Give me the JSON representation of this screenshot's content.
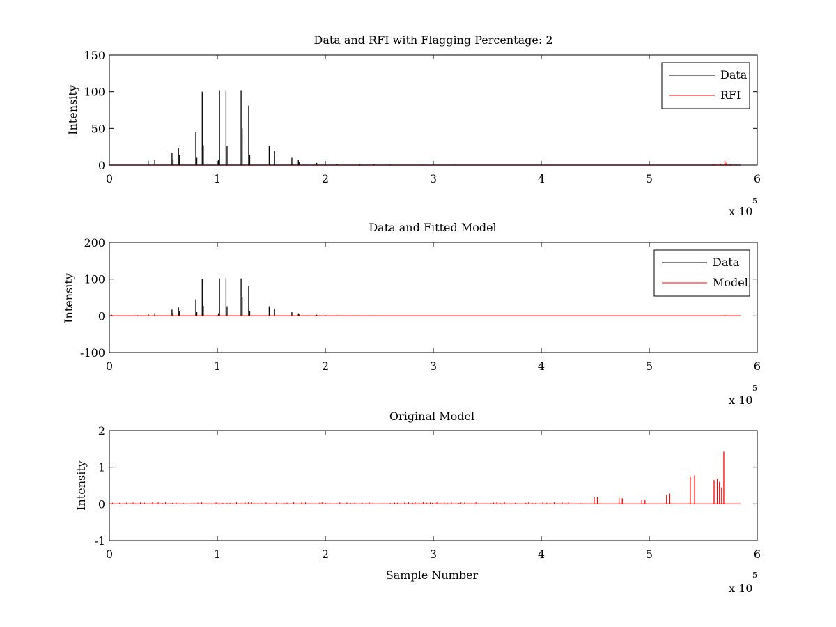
{
  "figure": {
    "background": "#ffffff",
    "axis_color": "#000000"
  },
  "chart_data": [
    {
      "type": "line",
      "title": "Data and RFI with Flagging Percentage: 2",
      "xlabel": "",
      "ylabel": "Intensity",
      "xlim": [
        0,
        600000
      ],
      "ylim": [
        0,
        150
      ],
      "xticks": [
        0,
        100000,
        200000,
        300000,
        400000,
        500000,
        600000
      ],
      "xtick_labels": [
        "0",
        "1",
        "2",
        "3",
        "4",
        "5",
        "6"
      ],
      "yticks": [
        0,
        50,
        100,
        150
      ],
      "ytick_labels": [
        "0",
        "50",
        "100",
        "150"
      ],
      "x_multiplier": {
        "base": "x 10",
        "exponent": "5"
      },
      "legend": {
        "placement": "top-right",
        "entries": [
          "Data",
          "RFI"
        ]
      },
      "grid": false,
      "baseline": 0,
      "x_end": 585000,
      "series": [
        {
          "name": "Data",
          "color": "#000000",
          "spikes": [
            [
              36000,
              6
            ],
            [
              42000,
              7
            ],
            [
              58000,
              17
            ],
            [
              59000,
              8
            ],
            [
              64000,
              23
            ],
            [
              65000,
              14
            ],
            [
              80000,
              45
            ],
            [
              81000,
              10
            ],
            [
              86000,
              100
            ],
            [
              87000,
              27
            ],
            [
              101000,
              7
            ],
            [
              102000,
              102
            ],
            [
              108000,
              102
            ],
            [
              109000,
              26
            ],
            [
              122000,
              102
            ],
            [
              123000,
              50
            ],
            [
              129000,
              81
            ],
            [
              130000,
              14
            ],
            [
              148000,
              26
            ],
            [
              153000,
              19
            ],
            [
              169000,
              10
            ],
            [
              175000,
              7
            ],
            [
              176000,
              4
            ],
            [
              183000,
              2
            ],
            [
              192000,
              3
            ],
            [
              200000,
              2
            ],
            [
              211000,
              1.5
            ],
            [
              232000,
              1
            ],
            [
              245000,
              1
            ],
            [
              260000,
              0.8
            ],
            [
              290000,
              0.6
            ],
            [
              320000,
              0.6
            ],
            [
              360000,
              0.5
            ]
          ]
        },
        {
          "name": "RFI",
          "color": "#ff0000",
          "spikes": [
            [
              560000,
              1
            ],
            [
              566000,
              2
            ],
            [
              570000,
              6
            ],
            [
              571000,
              3
            ],
            [
              575000,
              1
            ]
          ]
        }
      ]
    },
    {
      "type": "line",
      "title": "Data and Fitted Model",
      "xlabel": "",
      "ylabel": "Intensity",
      "xlim": [
        0,
        600000
      ],
      "ylim": [
        -100,
        200
      ],
      "xticks": [
        0,
        100000,
        200000,
        300000,
        400000,
        500000,
        600000
      ],
      "xtick_labels": [
        "0",
        "1",
        "2",
        "3",
        "4",
        "5",
        "6"
      ],
      "yticks": [
        -100,
        0,
        100,
        200
      ],
      "ytick_labels": [
        "-100",
        "0",
        "100",
        "200"
      ],
      "x_multiplier": {
        "base": "x 10",
        "exponent": "5"
      },
      "legend": {
        "placement": "top-right",
        "entries": [
          "Data",
          "Model"
        ]
      },
      "grid": false,
      "baseline": 0,
      "x_end": 585000,
      "series": [
        {
          "name": "Data",
          "color": "#000000",
          "spikes": [
            [
              2000,
              3
            ],
            [
              26000,
              2
            ],
            [
              36000,
              6
            ],
            [
              42000,
              7
            ],
            [
              58000,
              17
            ],
            [
              59000,
              8
            ],
            [
              64000,
              23
            ],
            [
              65000,
              14
            ],
            [
              80000,
              45
            ],
            [
              81000,
              10
            ],
            [
              86000,
              100
            ],
            [
              87000,
              27
            ],
            [
              101000,
              7
            ],
            [
              102000,
              102
            ],
            [
              108000,
              102
            ],
            [
              109000,
              26
            ],
            [
              122000,
              102
            ],
            [
              123000,
              50
            ],
            [
              129000,
              81
            ],
            [
              130000,
              14
            ],
            [
              148000,
              26
            ],
            [
              153000,
              19
            ],
            [
              169000,
              10
            ],
            [
              175000,
              7
            ],
            [
              176000,
              4
            ],
            [
              183000,
              2
            ],
            [
              192000,
              3
            ],
            [
              200000,
              2
            ],
            [
              211000,
              1.5
            ],
            [
              232000,
              1
            ],
            [
              245000,
              1
            ],
            [
              260000,
              0.8
            ],
            [
              280000,
              0.8
            ],
            [
              300000,
              0.6
            ],
            [
              320000,
              0.6
            ],
            [
              570000,
              2
            ]
          ]
        },
        {
          "name": "Model",
          "color": "#ff0000",
          "spikes": []
        }
      ]
    },
    {
      "type": "line",
      "title": "Original Model",
      "xlabel": "Sample Number",
      "ylabel": "Intensity",
      "xlim": [
        0,
        600000
      ],
      "ylim": [
        -1,
        2
      ],
      "xticks": [
        0,
        100000,
        200000,
        300000,
        400000,
        500000,
        600000
      ],
      "xtick_labels": [
        "0",
        "1",
        "2",
        "3",
        "4",
        "5",
        "6"
      ],
      "yticks": [
        -1,
        0,
        1,
        2
      ],
      "ytick_labels": [
        "-1",
        "0",
        "1",
        "2"
      ],
      "x_multiplier": {
        "base": "x 10",
        "exponent": "5"
      },
      "legend": null,
      "grid": false,
      "baseline": 0,
      "x_end": 585000,
      "series": [
        {
          "color": "#ff0000",
          "spikes": [
            [
              449000,
              0.18
            ],
            [
              452000,
              0.19
            ],
            [
              472000,
              0.16
            ],
            [
              475000,
              0.15
            ],
            [
              493000,
              0.12
            ],
            [
              496000,
              0.12
            ],
            [
              516000,
              0.25
            ],
            [
              519000,
              0.28
            ],
            [
              538000,
              0.75
            ],
            [
              542000,
              0.78
            ],
            [
              560000,
              0.65
            ],
            [
              563000,
              0.68
            ],
            [
              565000,
              0.6
            ],
            [
              567000,
              0.45
            ],
            [
              569000,
              1.42
            ]
          ],
          "noise": {
            "from": 2000,
            "to": 440000,
            "step": 3300,
            "max": 0.06
          }
        }
      ]
    }
  ]
}
